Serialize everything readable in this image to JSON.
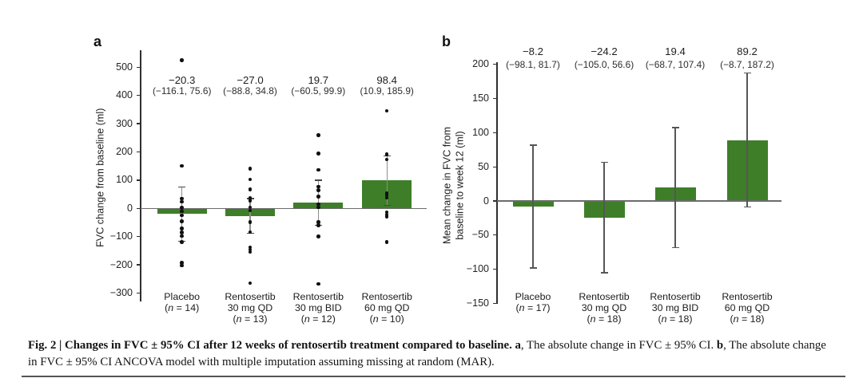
{
  "figure": {
    "caption": {
      "title_bold": "Fig. 2 | Changes in FVC ± 95% CI after 12 weeks of rentosertib treatment compared to baseline. ",
      "a_label": "a",
      "a_text": ", The absolute change in FVC ± 95% CI. ",
      "b_label": "b",
      "b_text": ", The absolute change in FVC ± 95% CI ANCOVA model with multiple imputation assuming missing at random (MAR)."
    }
  },
  "colors": {
    "bar_green": "#3e7e29",
    "axis": "#2f2f2f",
    "zero_line": "#6b6b6b",
    "error_bar_a": "#8e8e8e",
    "error_cap_a": "#474747",
    "error_bar_b": "#565656",
    "point": "#111111",
    "text": "#1f1f1f",
    "rule": "#555555"
  },
  "chart_data": [
    {
      "id": "a",
      "panel_letter": "a",
      "type": "bar",
      "ylabel_lines": [
        "FVC change from baseline (ml)"
      ],
      "ylim": [
        -300,
        540
      ],
      "yticks": [
        500,
        400,
        300,
        200,
        100,
        0,
        -100,
        -200,
        -300
      ],
      "categories": [
        [
          "Placebo",
          "(n = 14)"
        ],
        [
          "Rentosertib",
          "30 mg QD",
          "(n = 13)"
        ],
        [
          "Rentosertib",
          "30 mg BID",
          "(n = 12)"
        ],
        [
          "Rentosertib",
          "60 mg QD",
          "(n = 10)"
        ]
      ],
      "values": [
        -20.3,
        -27.0,
        19.7,
        98.4
      ],
      "ci_low": [
        -116.1,
        -88.8,
        -60.5,
        10.9
      ],
      "ci_high": [
        75.6,
        34.8,
        99.9,
        185.9
      ],
      "annotations": [
        {
          "mean": "−20.3",
          "ci": "(−116.1, 75.6)"
        },
        {
          "mean": "−27.0",
          "ci": "(−88.8, 34.8)"
        },
        {
          "mean": "19.7",
          "ci": "(−60.5, 99.9)"
        },
        {
          "mean": "98.4",
          "ci": "(10.9, 185.9)"
        }
      ],
      "points": [
        [
          525,
          150,
          35,
          23,
          2,
          -10,
          -25,
          -46,
          -72,
          -86,
          -98,
          -120,
          -192,
          -203
        ],
        [
          140,
          103,
          67,
          37,
          27,
          4,
          -8,
          -48,
          -84,
          -138,
          -146,
          -154,
          -265
        ],
        [
          260,
          194,
          137,
          77,
          65,
          41,
          15,
          4,
          -48,
          -60,
          -100,
          -267
        ],
        [
          345,
          192,
          173,
          55,
          48,
          37,
          -13,
          -22,
          -29,
          -120
        ]
      ]
    },
    {
      "id": "b",
      "panel_letter": "b",
      "type": "bar",
      "ylabel_lines": [
        "Mean change in FVC from",
        "baseline to week 12 (ml)"
      ],
      "ylim": [
        -150,
        200
      ],
      "yticks": [
        200,
        150,
        100,
        50,
        0,
        -50,
        -100,
        -150
      ],
      "categories": [
        [
          "Placebo",
          "(n = 17)"
        ],
        [
          "Rentosertib",
          "30 mg QD",
          "(n = 18)"
        ],
        [
          "Rentosertib",
          "30 mg BID",
          "(n = 18)"
        ],
        [
          "Rentosertib",
          "60 mg QD",
          "(n = 18)"
        ]
      ],
      "values": [
        -8.2,
        -24.2,
        19.4,
        89.2
      ],
      "ci_low": [
        -98.1,
        -105.0,
        -68.7,
        -8.7
      ],
      "ci_high": [
        81.7,
        56.6,
        107.4,
        187.2
      ],
      "annotations": [
        {
          "mean": "−8.2",
          "ci": "(−98.1, 81.7)"
        },
        {
          "mean": "−24.2",
          "ci": "(−105.0, 56.6)"
        },
        {
          "mean": "19.4",
          "ci": "(−68.7, 107.4)"
        },
        {
          "mean": "89.2",
          "ci": "(−8.7, 187.2)"
        }
      ],
      "points": [
        [],
        [],
        [],
        []
      ]
    }
  ]
}
